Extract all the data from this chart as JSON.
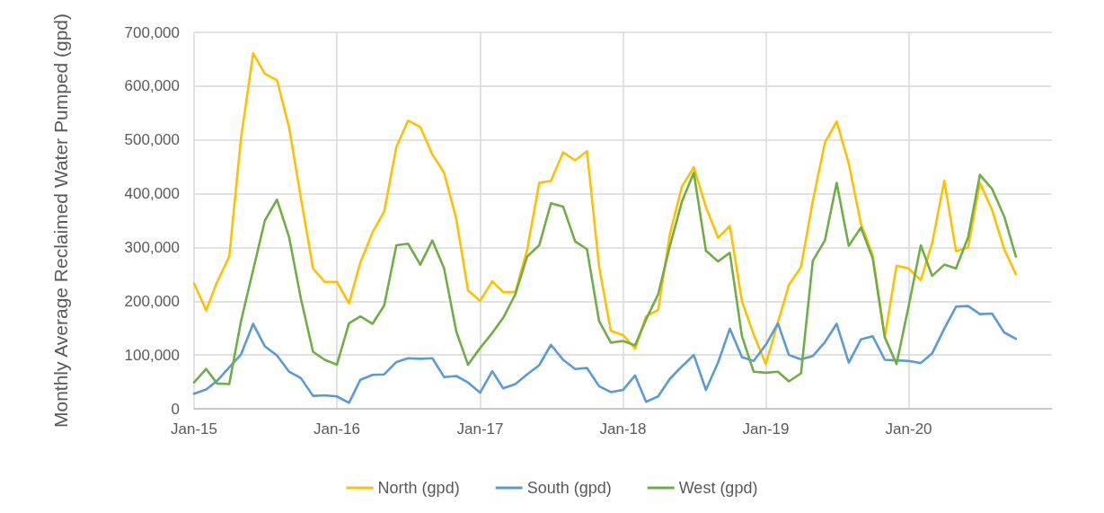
{
  "chart_data": {
    "type": "line",
    "ylabel": "Monthly Average Reclaimed Water Pumped (gpd)",
    "x": [
      "2015-01",
      "2015-02",
      "2015-03",
      "2015-04",
      "2015-05",
      "2015-06",
      "2015-07",
      "2015-08",
      "2015-09",
      "2015-10",
      "2015-11",
      "2015-12",
      "2016-01",
      "2016-02",
      "2016-03",
      "2016-04",
      "2016-05",
      "2016-06",
      "2016-07",
      "2016-08",
      "2016-09",
      "2016-10",
      "2016-11",
      "2016-12",
      "2017-01",
      "2017-02",
      "2017-03",
      "2017-04",
      "2017-05",
      "2017-06",
      "2017-07",
      "2017-08",
      "2017-09",
      "2017-10",
      "2017-11",
      "2017-12",
      "2018-01",
      "2018-02",
      "2018-03",
      "2018-04",
      "2018-05",
      "2018-06",
      "2018-07",
      "2018-08",
      "2018-09",
      "2018-10",
      "2018-11",
      "2018-12",
      "2019-01",
      "2019-02",
      "2019-03",
      "2019-04",
      "2019-05",
      "2019-06",
      "2019-07",
      "2019-08",
      "2019-09",
      "2019-10",
      "2019-11",
      "2019-12",
      "2020-01",
      "2020-02",
      "2020-03",
      "2020-04",
      "2020-05",
      "2020-06",
      "2020-07",
      "2020-08",
      "2020-09",
      "2020-10"
    ],
    "series": [
      {
        "name": "North (gpd)",
        "color": "#ffc000",
        "values": [
          233000,
          183000,
          236000,
          283000,
          503000,
          661000,
          623000,
          611000,
          523000,
          392000,
          261000,
          236000,
          236000,
          196000,
          272000,
          328000,
          367000,
          487000,
          536000,
          524000,
          473000,
          439000,
          353000,
          220000,
          201000,
          237000,
          217000,
          217000,
          295000,
          420000,
          424000,
          477000,
          462000,
          479000,
          264000,
          145000,
          137000,
          112000,
          172000,
          184000,
          325000,
          414000,
          449000,
          375000,
          318000,
          340000,
          200000,
          138000,
          83000,
          161000,
          230000,
          264000,
          386000,
          495000,
          534000,
          456000,
          344000,
          286000,
          133000,
          266000,
          261000,
          239000,
          308000,
          424000,
          293000,
          300000,
          420000,
          370000,
          297000,
          250000
        ]
      },
      {
        "name": "South (gpd)",
        "color": "#5b9bd5",
        "values": [
          28000,
          36000,
          52000,
          77000,
          101000,
          158000,
          116000,
          99000,
          69000,
          57000,
          24000,
          25000,
          23000,
          11000,
          54000,
          63000,
          64000,
          87000,
          94000,
          93000,
          94000,
          59000,
          61000,
          49000,
          30000,
          70000,
          38000,
          46000,
          64000,
          81000,
          119000,
          91000,
          74000,
          76000,
          42000,
          31000,
          35000,
          62000,
          13000,
          23000,
          56000,
          79000,
          100000,
          35000,
          86000,
          149000,
          96000,
          89000,
          119000,
          159000,
          100000,
          92000,
          98000,
          124000,
          158000,
          86000,
          129000,
          135000,
          91000,
          90000,
          89000,
          85000,
          103000,
          149000,
          190000,
          191000,
          176000,
          177000,
          142000,
          130000
        ]
      },
      {
        "name": "West (gpd)",
        "color": "#70ad47",
        "values": [
          49000,
          74000,
          47000,
          46000,
          163000,
          258000,
          350000,
          389000,
          319000,
          205000,
          106000,
          91000,
          82000,
          159000,
          172000,
          158000,
          192000,
          304000,
          307000,
          268000,
          313000,
          261000,
          144000,
          82000,
          113000,
          141000,
          169000,
          213000,
          283000,
          304000,
          382000,
          376000,
          311000,
          297000,
          163000,
          123000,
          126000,
          118000,
          166000,
          213000,
          303000,
          386000,
          439000,
          294000,
          274000,
          290000,
          135000,
          69000,
          67000,
          69000,
          51000,
          66000,
          275000,
          313000,
          420000,
          303000,
          337000,
          280000,
          133000,
          83000,
          191000,
          304000,
          247000,
          268000,
          261000,
          319000,
          435000,
          409000,
          358000,
          283000
        ]
      }
    ],
    "xlim": [
      "2015-01",
      "2021-01"
    ],
    "xticks": [
      {
        "value": "2015-01",
        "label": "Jan-15"
      },
      {
        "value": "2016-01",
        "label": "Jan-16"
      },
      {
        "value": "2017-01",
        "label": "Jan-17"
      },
      {
        "value": "2018-01",
        "label": "Jan-18"
      },
      {
        "value": "2019-01",
        "label": "Jan-19"
      },
      {
        "value": "2020-01",
        "label": "Jan-20"
      }
    ],
    "ylim": [
      0,
      700000
    ],
    "yticks": [
      {
        "value": 0,
        "label": "0"
      },
      {
        "value": 100000,
        "label": "100,000"
      },
      {
        "value": 200000,
        "label": "200,000"
      },
      {
        "value": 300000,
        "label": "300,000"
      },
      {
        "value": 400000,
        "label": "400,000"
      },
      {
        "value": 500000,
        "label": "500,000"
      },
      {
        "value": 600000,
        "label": "600,000"
      },
      {
        "value": 700000,
        "label": "700,000"
      }
    ],
    "grid": true,
    "legend": "bottom",
    "marker": "none",
    "line_style": "solid"
  }
}
